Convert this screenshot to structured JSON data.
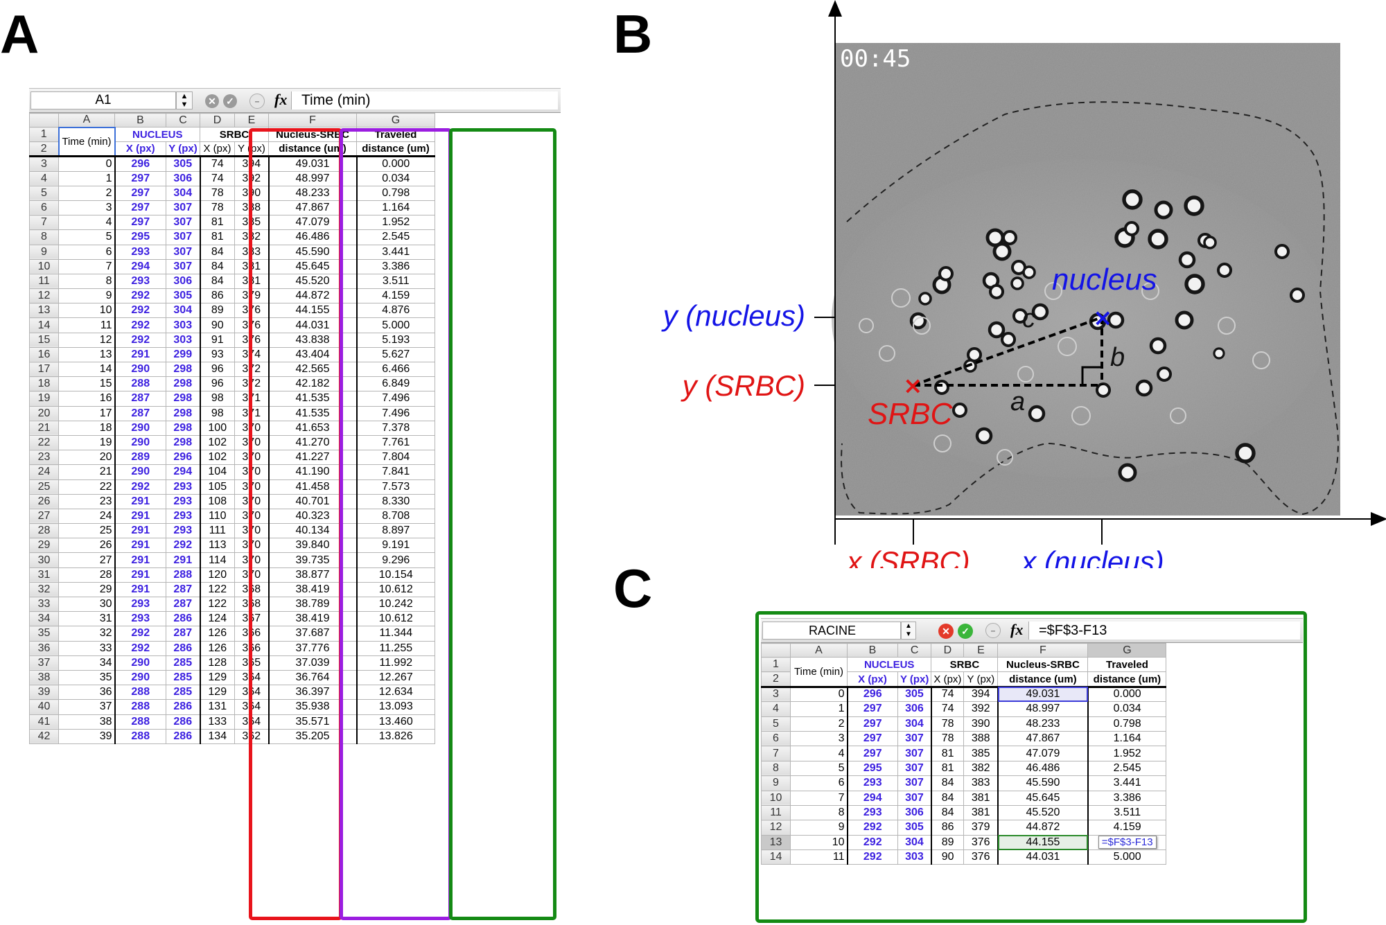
{
  "panels": {
    "a": "A",
    "b": "B",
    "c": "C"
  },
  "sheet_a": {
    "name_box": "A1",
    "fx": "fx",
    "formula": "Time (min)",
    "columns": [
      "A",
      "B",
      "C",
      "D",
      "E",
      "F",
      "G"
    ],
    "headers": {
      "time": "Time (min)",
      "nucleus": "NUCLEUS",
      "srbc": "SRBC",
      "x_px": "X (px)",
      "y_px": "Y (px)",
      "dist_l1": "Nucleus-SRBC",
      "dist_l2": "distance (um)",
      "trav_l1": "Traveled",
      "trav_l2": "distance (um)"
    },
    "header_rows": [
      "1",
      "2"
    ],
    "rows": [
      [
        "3",
        "0",
        "296",
        "305",
        "74",
        "394",
        "49.031",
        "0.000"
      ],
      [
        "4",
        "1",
        "297",
        "306",
        "74",
        "392",
        "48.997",
        "0.034"
      ],
      [
        "5",
        "2",
        "297",
        "304",
        "78",
        "390",
        "48.233",
        "0.798"
      ],
      [
        "6",
        "3",
        "297",
        "307",
        "78",
        "388",
        "47.867",
        "1.164"
      ],
      [
        "7",
        "4",
        "297",
        "307",
        "81",
        "385",
        "47.079",
        "1.952"
      ],
      [
        "8",
        "5",
        "295",
        "307",
        "81",
        "382",
        "46.486",
        "2.545"
      ],
      [
        "9",
        "6",
        "293",
        "307",
        "84",
        "383",
        "45.590",
        "3.441"
      ],
      [
        "10",
        "7",
        "294",
        "307",
        "84",
        "381",
        "45.645",
        "3.386"
      ],
      [
        "11",
        "8",
        "293",
        "306",
        "84",
        "381",
        "45.520",
        "3.511"
      ],
      [
        "12",
        "9",
        "292",
        "305",
        "86",
        "379",
        "44.872",
        "4.159"
      ],
      [
        "13",
        "10",
        "292",
        "304",
        "89",
        "376",
        "44.155",
        "4.876"
      ],
      [
        "14",
        "11",
        "292",
        "303",
        "90",
        "376",
        "44.031",
        "5.000"
      ],
      [
        "15",
        "12",
        "292",
        "303",
        "91",
        "376",
        "43.838",
        "5.193"
      ],
      [
        "16",
        "13",
        "291",
        "299",
        "93",
        "374",
        "43.404",
        "5.627"
      ],
      [
        "17",
        "14",
        "290",
        "298",
        "96",
        "372",
        "42.565",
        "6.466"
      ],
      [
        "18",
        "15",
        "288",
        "298",
        "96",
        "372",
        "42.182",
        "6.849"
      ],
      [
        "19",
        "16",
        "287",
        "298",
        "98",
        "371",
        "41.535",
        "7.496"
      ],
      [
        "20",
        "17",
        "287",
        "298",
        "98",
        "371",
        "41.535",
        "7.496"
      ],
      [
        "21",
        "18",
        "290",
        "298",
        "100",
        "370",
        "41.653",
        "7.378"
      ],
      [
        "22",
        "19",
        "290",
        "298",
        "102",
        "370",
        "41.270",
        "7.761"
      ],
      [
        "23",
        "20",
        "289",
        "296",
        "102",
        "370",
        "41.227",
        "7.804"
      ],
      [
        "24",
        "21",
        "290",
        "294",
        "104",
        "370",
        "41.190",
        "7.841"
      ],
      [
        "25",
        "22",
        "292",
        "293",
        "105",
        "370",
        "41.458",
        "7.573"
      ],
      [
        "26",
        "23",
        "291",
        "293",
        "108",
        "370",
        "40.701",
        "8.330"
      ],
      [
        "27",
        "24",
        "291",
        "293",
        "110",
        "370",
        "40.323",
        "8.708"
      ],
      [
        "28",
        "25",
        "291",
        "293",
        "111",
        "370",
        "40.134",
        "8.897"
      ],
      [
        "29",
        "26",
        "291",
        "292",
        "113",
        "370",
        "39.840",
        "9.191"
      ],
      [
        "30",
        "27",
        "291",
        "291",
        "114",
        "370",
        "39.735",
        "9.296"
      ],
      [
        "31",
        "28",
        "291",
        "288",
        "120",
        "370",
        "38.877",
        "10.154"
      ],
      [
        "32",
        "29",
        "291",
        "287",
        "122",
        "368",
        "38.419",
        "10.612"
      ],
      [
        "33",
        "30",
        "293",
        "287",
        "122",
        "368",
        "38.789",
        "10.242"
      ],
      [
        "34",
        "31",
        "293",
        "286",
        "124",
        "367",
        "38.419",
        "10.612"
      ],
      [
        "35",
        "32",
        "292",
        "287",
        "126",
        "366",
        "37.687",
        "11.344"
      ],
      [
        "36",
        "33",
        "292",
        "286",
        "126",
        "366",
        "37.776",
        "11.255"
      ],
      [
        "37",
        "34",
        "290",
        "285",
        "128",
        "365",
        "37.039",
        "11.992"
      ],
      [
        "38",
        "35",
        "290",
        "285",
        "129",
        "364",
        "36.764",
        "12.267"
      ],
      [
        "39",
        "36",
        "288",
        "285",
        "129",
        "364",
        "36.397",
        "12.634"
      ],
      [
        "40",
        "37",
        "288",
        "286",
        "131",
        "364",
        "35.938",
        "13.093"
      ],
      [
        "41",
        "38",
        "288",
        "286",
        "133",
        "364",
        "35.571",
        "13.460"
      ],
      [
        "42",
        "39",
        "288",
        "286",
        "134",
        "362",
        "35.205",
        "13.826"
      ]
    ]
  },
  "image_b": {
    "timestamp": "00:45",
    "nucleus_label": "nucleus",
    "srbc_label": "SRBC",
    "seg_a": "a",
    "seg_b": "b",
    "seg_c": "c",
    "y_nucleus": "y (nucleus)",
    "y_srbc": "y (SRBC)",
    "x_srbc": "x (SRBC)",
    "x_nucleus": "x (nucleus)",
    "colors": {
      "nucleus": "#1414e6",
      "srbc": "#e01414"
    }
  },
  "sheet_c": {
    "name_box": "RACINE",
    "fx": "fx",
    "formula": "=$F$3-F13",
    "editing_cell": "=$F$3-F13",
    "columns": [
      "A",
      "B",
      "C",
      "D",
      "E",
      "F",
      "G"
    ],
    "headers": {
      "time": "Time (min)",
      "nucleus": "NUCLEUS",
      "srbc": "SRBC",
      "x_px": "X (px)",
      "y_px": "Y (px)",
      "dist_l1": "Nucleus-SRBC",
      "dist_l2": "distance (um)",
      "trav_l1": "Traveled",
      "trav_l2": "distance (um)"
    },
    "header_rows": [
      "1",
      "2"
    ],
    "rows": [
      [
        "3",
        "0",
        "296",
        "305",
        "74",
        "394",
        "49.031",
        "0.000"
      ],
      [
        "4",
        "1",
        "297",
        "306",
        "74",
        "392",
        "48.997",
        "0.034"
      ],
      [
        "5",
        "2",
        "297",
        "304",
        "78",
        "390",
        "48.233",
        "0.798"
      ],
      [
        "6",
        "3",
        "297",
        "307",
        "78",
        "388",
        "47.867",
        "1.164"
      ],
      [
        "7",
        "4",
        "297",
        "307",
        "81",
        "385",
        "47.079",
        "1.952"
      ],
      [
        "8",
        "5",
        "295",
        "307",
        "81",
        "382",
        "46.486",
        "2.545"
      ],
      [
        "9",
        "6",
        "293",
        "307",
        "84",
        "383",
        "45.590",
        "3.441"
      ],
      [
        "10",
        "7",
        "294",
        "307",
        "84",
        "381",
        "45.645",
        "3.386"
      ],
      [
        "11",
        "8",
        "293",
        "306",
        "84",
        "381",
        "45.520",
        "3.511"
      ],
      [
        "12",
        "9",
        "292",
        "305",
        "86",
        "379",
        "44.872",
        "4.159"
      ],
      [
        "13",
        "10",
        "292",
        "304",
        "89",
        "376",
        "44.155",
        ""
      ],
      [
        "14",
        "11",
        "292",
        "303",
        "90",
        "376",
        "44.031",
        "5.000"
      ]
    ]
  }
}
